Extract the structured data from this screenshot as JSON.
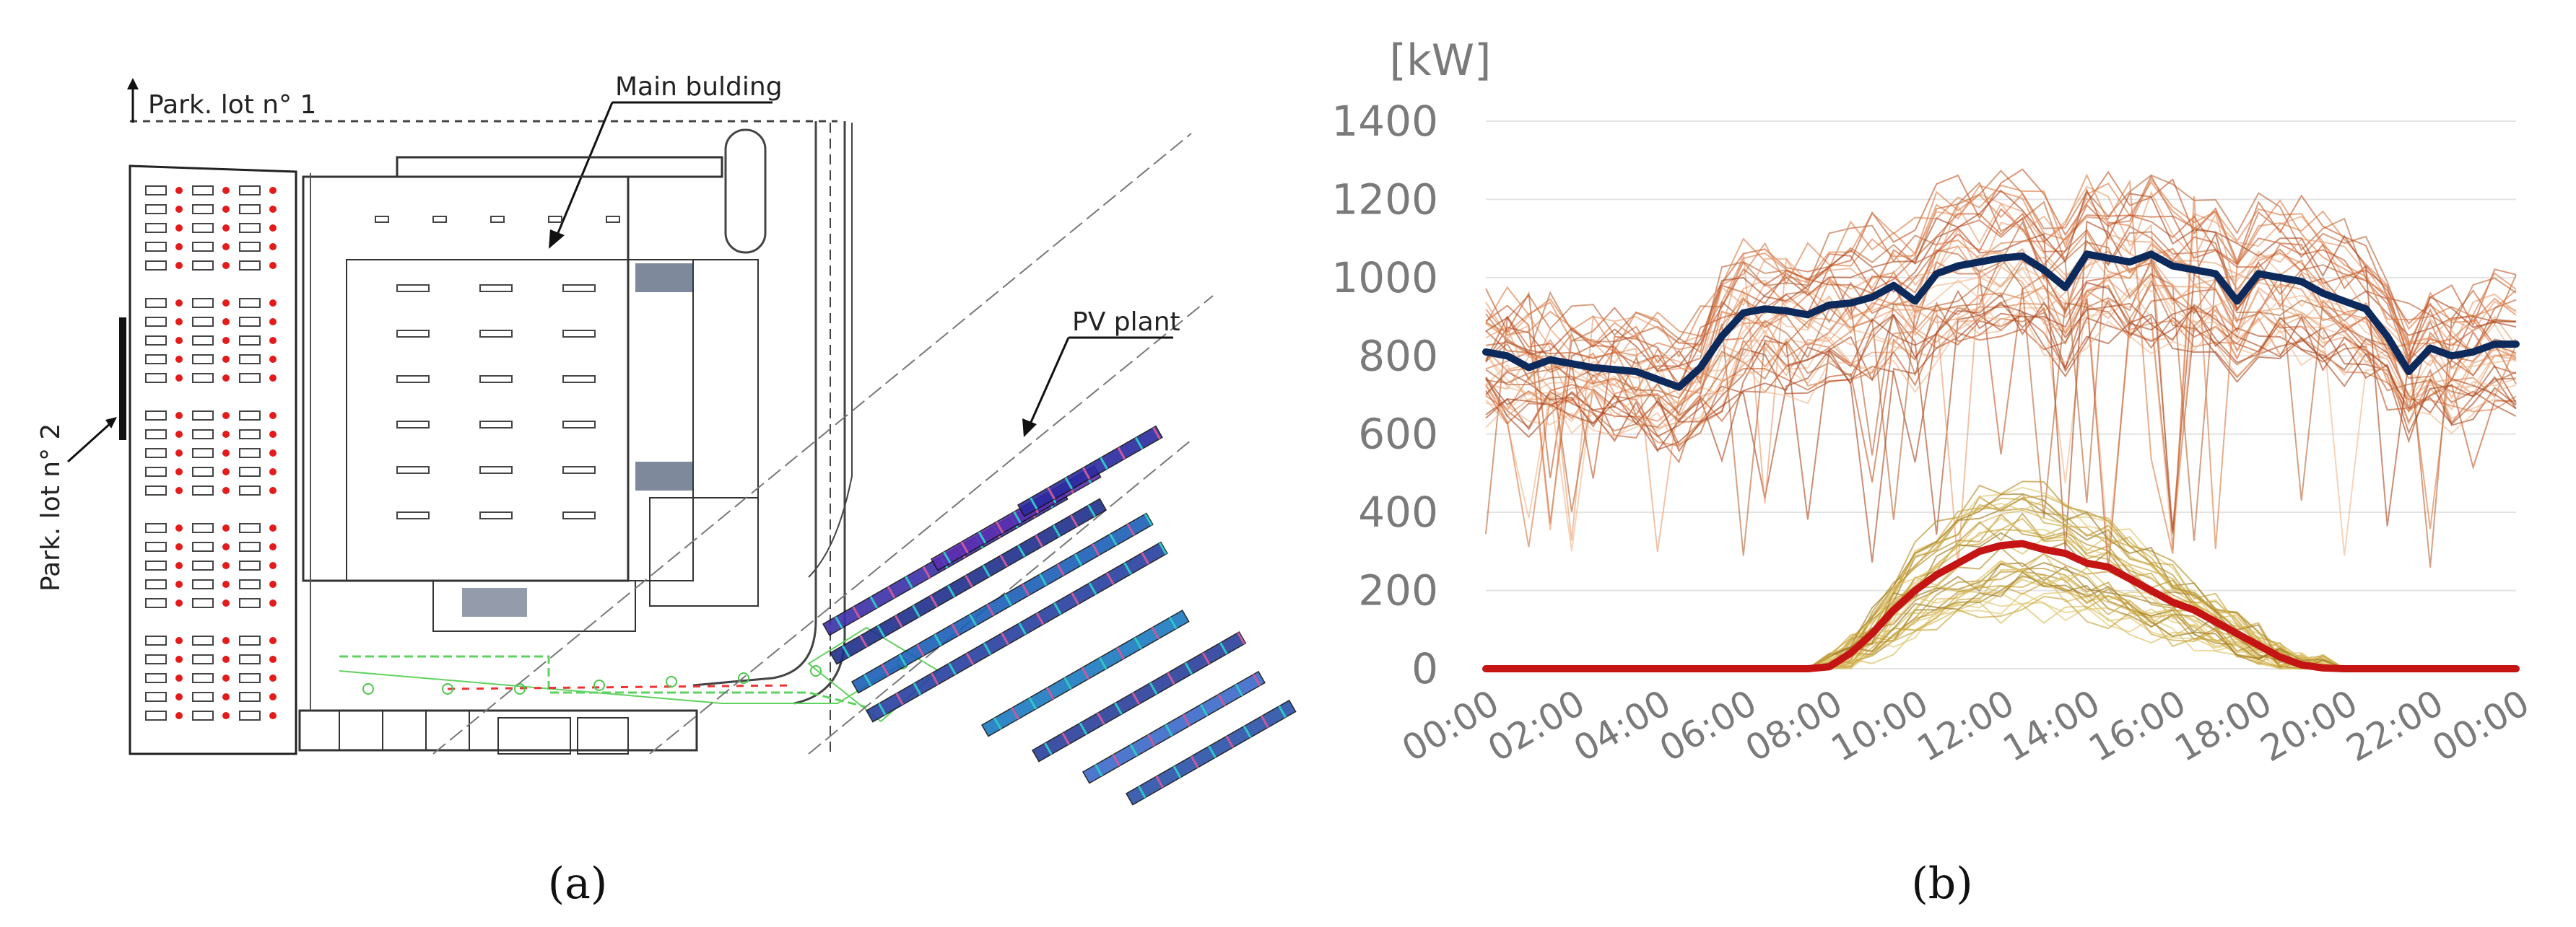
{
  "panel_a": {
    "label": "(a)",
    "annotations": {
      "park_lot_1": "Park. lot n° 1",
      "park_lot_2": "Park. lot n° 2",
      "main_building": "Main bulding",
      "pv_plant": "PV plant"
    }
  },
  "panel_b": {
    "label": "(b)"
  },
  "chart_data": {
    "type": "line",
    "title": "",
    "xlabel": "",
    "ylabel": "[kW]",
    "x_ticks": [
      "00:00",
      "02:00",
      "04:00",
      "06:00",
      "08:00",
      "10:00",
      "12:00",
      "14:00",
      "16:00",
      "18:00",
      "20:00",
      "22:00",
      "00:00"
    ],
    "y_ticks": [
      0,
      200,
      400,
      600,
      800,
      1000,
      1200,
      1400
    ],
    "ylim": [
      0,
      1400
    ],
    "xlim_hours": [
      0,
      24
    ],
    "grid": "horizontal",
    "colors": {
      "load_mean": "#0d2a5c",
      "pv_mean": "#c41414",
      "load_days": "#d9763f",
      "pv_days": "#c9a43c"
    },
    "series": [
      {
        "x": [
          0,
          0.5,
          1,
          1.5,
          2,
          2.5,
          3,
          3.5,
          4,
          4.5,
          5,
          5.5,
          6,
          6.5,
          7,
          7.5,
          8,
          8.5,
          9,
          9.5,
          10,
          10.5,
          11,
          11.5,
          12,
          12.5,
          13,
          13.5,
          14,
          14.5,
          15,
          15.5,
          16,
          16.5,
          17,
          17.5,
          18,
          18.5,
          19,
          19.5,
          20,
          20.5,
          21,
          21.5,
          22,
          22.5,
          23,
          23.5,
          24
        ],
        "values": [
          810,
          800,
          770,
          790,
          780,
          770,
          765,
          760,
          740,
          720,
          770,
          850,
          910,
          920,
          915,
          905,
          930,
          935,
          950,
          980,
          940,
          1010,
          1030,
          1040,
          1050,
          1055,
          1020,
          975,
          1060,
          1050,
          1040,
          1060,
          1030,
          1020,
          1010,
          940,
          1010,
          1000,
          990,
          960,
          940,
          920,
          850,
          760,
          820,
          800,
          810,
          830,
          830
        ]
      },
      {
        "x": [
          0,
          0.5,
          1,
          1.5,
          2,
          2.5,
          3,
          3.5,
          4,
          4.5,
          5,
          5.5,
          6,
          6.5,
          7,
          7.5,
          8,
          8.5,
          9,
          9.5,
          10,
          10.5,
          11,
          11.5,
          12,
          12.5,
          13,
          13.5,
          14,
          14.5,
          15,
          15.5,
          16,
          16.5,
          17,
          17.5,
          18,
          18.5,
          19,
          19.5,
          20,
          20.5,
          21,
          21.5,
          22,
          22.5,
          23,
          23.5,
          24
        ],
        "values": [
          0,
          0,
          0,
          0,
          0,
          0,
          0,
          0,
          0,
          0,
          0,
          0,
          0,
          0,
          0,
          0,
          5,
          40,
          90,
          150,
          200,
          240,
          270,
          300,
          315,
          320,
          305,
          295,
          270,
          260,
          230,
          200,
          170,
          150,
          120,
          90,
          60,
          30,
          10,
          2,
          0,
          0,
          0,
          0,
          0,
          0,
          0,
          0,
          0
        ]
      }
    ]
  }
}
